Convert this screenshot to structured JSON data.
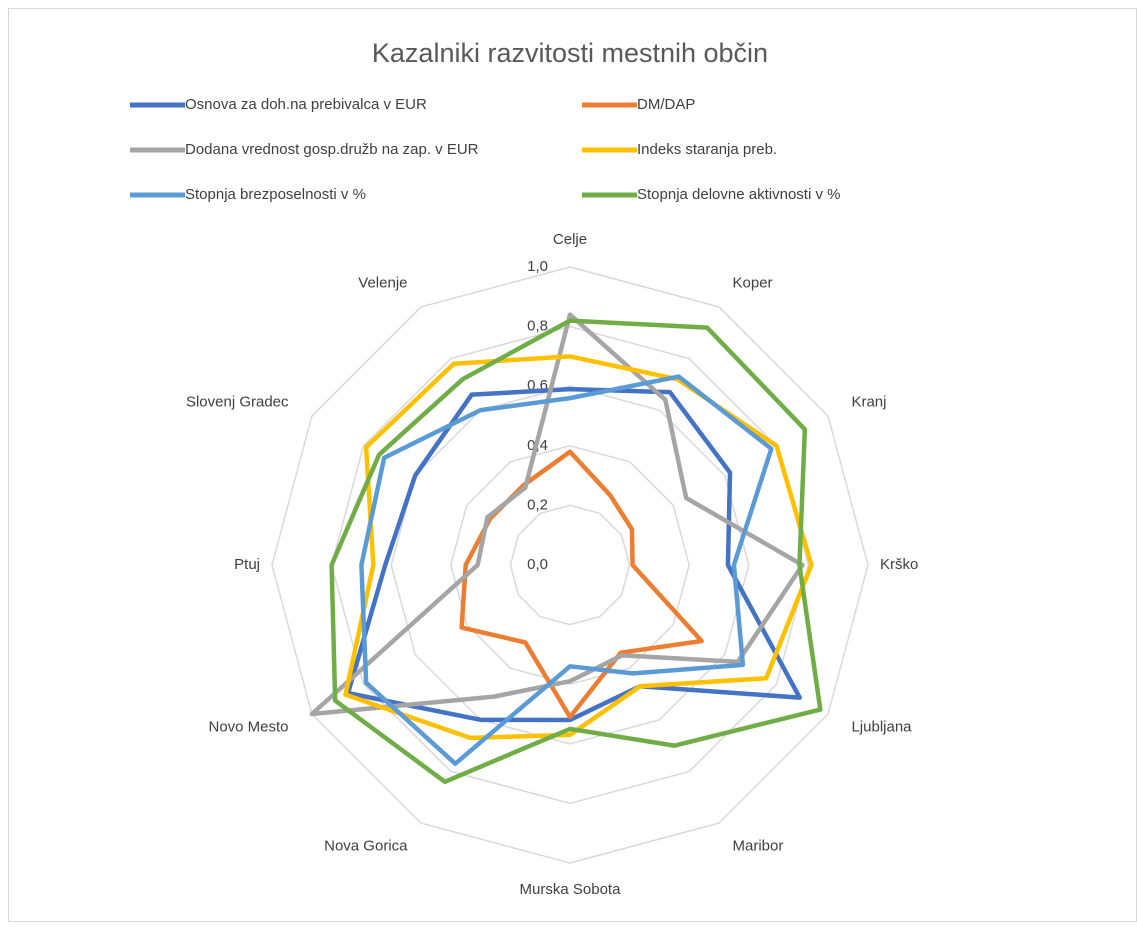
{
  "chart_data": {
    "type": "radar",
    "title": "Kazalniki razvitosti mestnih občin",
    "categories": [
      "Celje",
      "Koper",
      "Kranj",
      "Krško",
      "Ljubljana",
      "Maribor",
      "Murska Sobota",
      "Nova Gorica",
      "Novo Mesto",
      "Ptuj",
      "Slovenj Gradec",
      "Velenje"
    ],
    "series": [
      {
        "name": "Osnova za doh.na prebivalca v EUR",
        "color": "#4472c4",
        "values": [
          0.59,
          0.67,
          0.62,
          0.53,
          0.89,
          0.47,
          0.52,
          0.6,
          0.86,
          0.62,
          0.6,
          0.66
        ]
      },
      {
        "name": "DM/DAP",
        "color": "#ed7d31",
        "values": [
          0.38,
          0.27,
          0.24,
          0.21,
          0.51,
          0.34,
          0.51,
          0.3,
          0.42,
          0.35,
          0.31,
          0.31
        ]
      },
      {
        "name": "Dodana vrednost gosp.družb na zap. v EUR",
        "color": "#a5a5a5",
        "values": [
          0.84,
          0.64,
          0.45,
          0.78,
          0.65,
          0.35,
          0.39,
          0.51,
          1.0,
          0.31,
          0.32,
          0.3
        ]
      },
      {
        "name": "Indeks staranja preb.",
        "color": "#ffc000",
        "values": [
          0.7,
          0.72,
          0.8,
          0.81,
          0.76,
          0.47,
          0.57,
          0.67,
          0.87,
          0.66,
          0.79,
          0.78
        ]
      },
      {
        "name": "Stopnja brezposelnosti v %",
        "color": "#5b9bd5",
        "values": [
          0.56,
          0.73,
          0.78,
          0.55,
          0.67,
          0.42,
          0.34,
          0.77,
          0.79,
          0.7,
          0.72,
          0.6
        ]
      },
      {
        "name": "Stopnja delovne aktivnosti v %",
        "color": "#70ad47",
        "values": [
          0.82,
          0.92,
          0.91,
          0.77,
          0.97,
          0.7,
          0.55,
          0.84,
          0.91,
          0.8,
          0.74,
          0.72
        ]
      }
    ],
    "ylim": [
      0,
      1
    ],
    "yticks": [
      {
        "value": 0,
        "label": "0,0"
      },
      {
        "value": 0.2,
        "label": "0,2"
      },
      {
        "value": 0.4,
        "label": "0,4"
      },
      {
        "value": 0.6,
        "label": "0,6"
      },
      {
        "value": 0.8,
        "label": "0,8"
      },
      {
        "value": 1,
        "label": "1,0"
      }
    ],
    "grid": true,
    "legend": "top"
  }
}
